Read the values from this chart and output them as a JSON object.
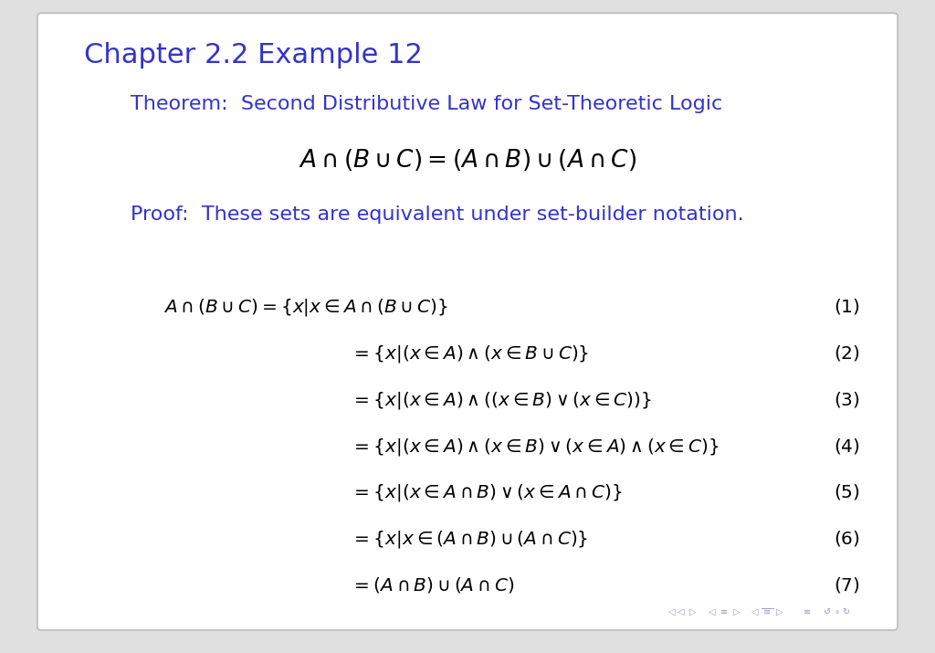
{
  "background_color": "#ffffff",
  "outer_bg": "#e0e0e0",
  "border_color": "#bbbbbb",
  "blue_color": "#3333cc",
  "title": "Chapter 2.2 Example 12",
  "theorem_line": "Theorem:  Second Distributive Law for Set-Theoretic Logic",
  "proof_line": "Proof:  These sets are equivalent under set-builder notation.",
  "title_fontsize": 22,
  "theorem_fontsize": 16,
  "proof_fontsize": 16,
  "math_fontsize": 14.5,
  "nav_color": "#9999cc"
}
